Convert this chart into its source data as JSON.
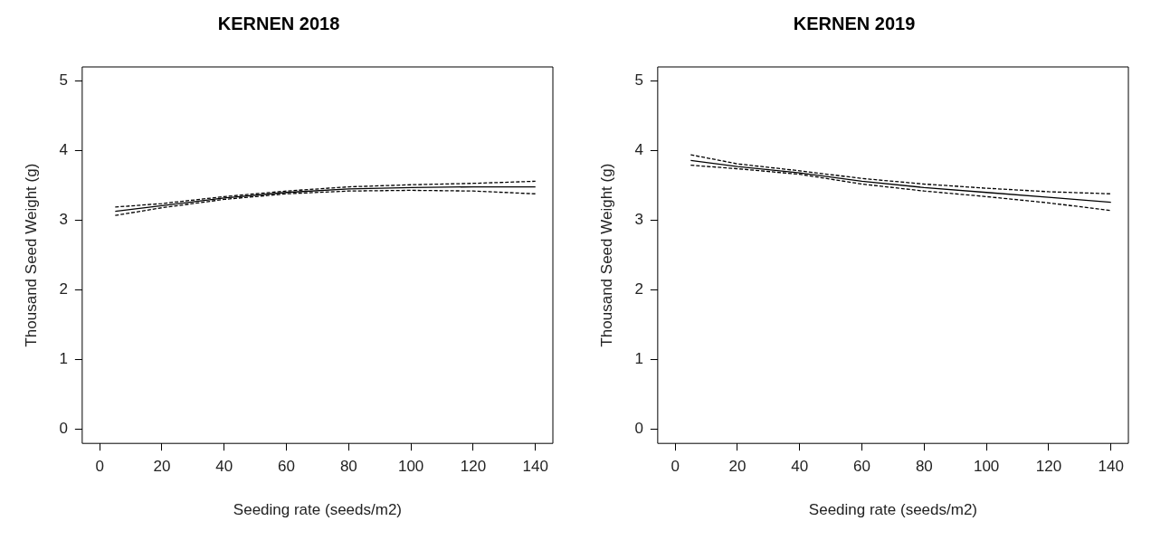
{
  "chart_data": [
    {
      "type": "line",
      "title": "KERNEN 2018",
      "xlabel": "Seeding rate (seeds/m2)",
      "ylabel": "Thousand Seed Weight (g)",
      "x": [
        5,
        20,
        40,
        60,
        80,
        100,
        120,
        140
      ],
      "marker": "none",
      "grid": false,
      "xlim": [
        -5.6,
        145.6
      ],
      "ylim": [
        -0.2,
        5.2
      ],
      "xticks": [
        0,
        20,
        40,
        60,
        80,
        100,
        120,
        140
      ],
      "yticks": [
        0,
        1,
        2,
        3,
        4,
        5
      ],
      "series": [
        {
          "color": "#000000",
          "line_style": "solid",
          "values": [
            3.13,
            3.21,
            3.32,
            3.4,
            3.45,
            3.47,
            3.48,
            3.48
          ]
        },
        {
          "color": "#000000",
          "line_style": "dashed",
          "values": [
            3.07,
            3.18,
            3.3,
            3.38,
            3.42,
            3.43,
            3.42,
            3.38
          ]
        },
        {
          "color": "#000000",
          "line_style": "dashed",
          "values": [
            3.19,
            3.24,
            3.34,
            3.42,
            3.48,
            3.51,
            3.53,
            3.56
          ]
        }
      ]
    },
    {
      "type": "line",
      "title": "KERNEN 2019",
      "xlabel": "Seeding rate (seeds/m2)",
      "ylabel": "Thousand Seed Weight (g)",
      "x": [
        5,
        20,
        40,
        60,
        80,
        100,
        120,
        140
      ],
      "marker": "none",
      "grid": false,
      "xlim": [
        -5.6,
        145.6
      ],
      "ylim": [
        -0.2,
        5.2
      ],
      "xticks": [
        0,
        20,
        40,
        60,
        80,
        100,
        120,
        140
      ],
      "yticks": [
        0,
        1,
        2,
        3,
        4,
        5
      ],
      "series": [
        {
          "color": "#000000",
          "line_style": "solid",
          "values": [
            3.86,
            3.77,
            3.68,
            3.56,
            3.47,
            3.4,
            3.33,
            3.26
          ]
        },
        {
          "color": "#000000",
          "line_style": "dashed",
          "values": [
            3.79,
            3.74,
            3.66,
            3.52,
            3.42,
            3.34,
            3.25,
            3.14
          ]
        },
        {
          "color": "#000000",
          "line_style": "dashed",
          "values": [
            3.94,
            3.81,
            3.71,
            3.6,
            3.52,
            3.46,
            3.41,
            3.38
          ]
        }
      ]
    }
  ]
}
